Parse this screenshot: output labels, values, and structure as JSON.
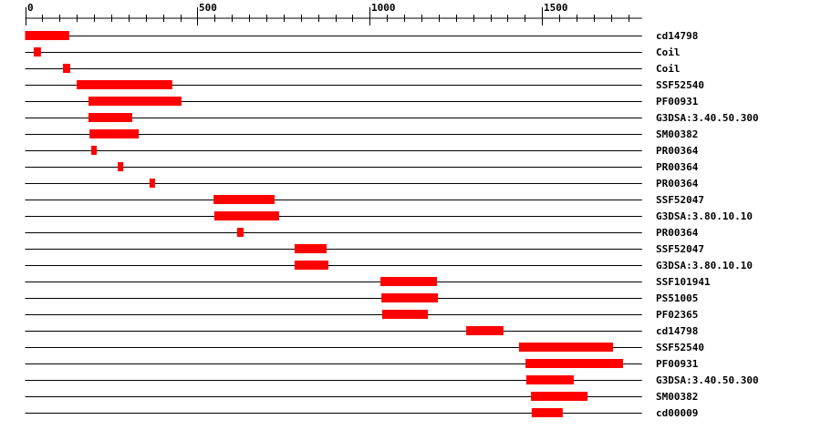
{
  "axis": {
    "min": 0,
    "max": 1790,
    "ticks": [
      0,
      500,
      1000,
      1500
    ],
    "minor_step": 50,
    "tick_labels": [
      "0",
      "500",
      "1000",
      "1500"
    ]
  },
  "colors": {
    "domain": "#ff0000",
    "line": "#000000"
  },
  "tracks": [
    {
      "label": "cd14798",
      "start": 0,
      "end": 128
    },
    {
      "label": "Coil",
      "start": 25,
      "end": 46
    },
    {
      "label": "Coil",
      "start": 110,
      "end": 131
    },
    {
      "label": "SSF52540",
      "start": 150,
      "end": 427
    },
    {
      "label": "PF00931",
      "start": 184,
      "end": 454
    },
    {
      "label": "G3DSA:3.40.50.300",
      "start": 184,
      "end": 311
    },
    {
      "label": "SM00382",
      "start": 187,
      "end": 330
    },
    {
      "label": "PR00364",
      "start": 192,
      "end": 208
    },
    {
      "label": "PR00364",
      "start": 269,
      "end": 285
    },
    {
      "label": "PR00364",
      "start": 361,
      "end": 377
    },
    {
      "label": "SSF52047",
      "start": 547,
      "end": 724
    },
    {
      "label": "G3DSA:3.80.10.10",
      "start": 549,
      "end": 737
    },
    {
      "label": "PR00364",
      "start": 615,
      "end": 634
    },
    {
      "label": "SSF52047",
      "start": 782,
      "end": 875
    },
    {
      "label": "G3DSA:3.80.10.10",
      "start": 782,
      "end": 880
    },
    {
      "label": "SSF101941",
      "start": 1031,
      "end": 1195
    },
    {
      "label": "PS51005",
      "start": 1034,
      "end": 1198
    },
    {
      "label": "PF02365",
      "start": 1036,
      "end": 1169
    },
    {
      "label": "cd14798",
      "start": 1280,
      "end": 1388
    },
    {
      "label": "SSF52540",
      "start": 1433,
      "end": 1706
    },
    {
      "label": "PF00931",
      "start": 1452,
      "end": 1735
    },
    {
      "label": "G3DSA:3.40.50.300",
      "start": 1454,
      "end": 1592
    },
    {
      "label": "SM00382",
      "start": 1468,
      "end": 1632
    },
    {
      "label": "cd00009",
      "start": 1470,
      "end": 1560
    }
  ]
}
